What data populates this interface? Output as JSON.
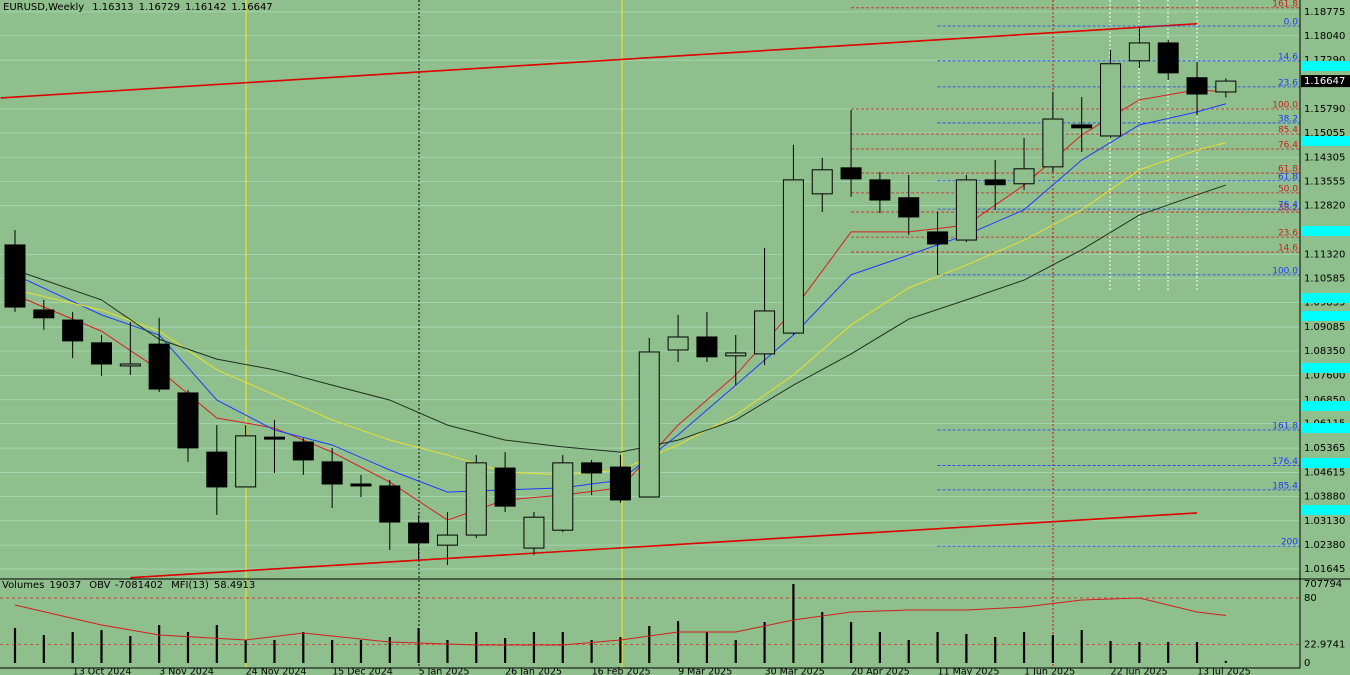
{
  "header": {
    "symbol": "EURUSD,Weekly"
  },
  "chart_data": [
    {
      "type": "candlestick",
      "categories": [
        null,
        null,
        "13 Oct 2024",
        null,
        null,
        "3 Nov 2024",
        null,
        null,
        "24 Nov 2024",
        null,
        null,
        "15 Dec 2024",
        null,
        null,
        "5 Jan 2025",
        null,
        null,
        "26 Jan 2025",
        null,
        null,
        "16 Feb 2025",
        null,
        null,
        "9 Mar 2025",
        null,
        null,
        "30 Mar 2025",
        null,
        null,
        "20 Apr 2025",
        null,
        null,
        "11 May 2025",
        null,
        null,
        "1 Jun 2025",
        null,
        null,
        "22 Jun 2025",
        null,
        null,
        "13 Jul 2025",
        null
      ],
      "open": [
        1.1161,
        1.0961,
        1.093,
        1.086,
        1.0789,
        1.0856,
        1.0706,
        1.0524,
        1.0417,
        1.057,
        1.0555,
        1.0494,
        1.0426,
        1.042,
        1.0306,
        1.0238,
        1.0269,
        1.0475,
        1.0229,
        1.0284,
        1.0491,
        1.0478,
        1.0386,
        1.0838,
        1.0878,
        1.082,
        1.0826,
        1.089,
        1.1318,
        1.1398,
        1.1361,
        1.1306,
        1.1201,
        1.1176,
        1.1361,
        1.1349,
        1.1401,
        1.153,
        1.1496,
        1.1727,
        1.1782,
        1.1675,
        1.16313
      ],
      "high": [
        1.1207,
        1.0992,
        1.0955,
        1.0884,
        1.0924,
        1.0937,
        1.0715,
        1.0607,
        1.0607,
        1.0623,
        1.0567,
        1.0537,
        1.0454,
        1.0438,
        1.0331,
        1.034,
        1.0515,
        1.0524,
        1.034,
        1.0515,
        1.05,
        1.0515,
        1.0875,
        1.0946,
        1.0955,
        1.0884,
        1.1152,
        1.1469,
        1.1429,
        1.1576,
        1.1385,
        1.1376,
        1.1262,
        1.1376,
        1.1422,
        1.149,
        1.1632,
        1.1616,
        1.1761,
        1.1828,
        1.1791,
        1.1724,
        1.16729
      ],
      "low": [
        1.0955,
        1.09,
        1.0813,
        1.0758,
        1.0761,
        1.0709,
        1.0494,
        1.0331,
        1.0423,
        1.046,
        1.0454,
        1.0352,
        1.0386,
        1.0223,
        1.0192,
        1.0177,
        1.026,
        1.034,
        1.0208,
        1.0278,
        1.0392,
        1.0368,
        1.0386,
        1.0801,
        1.0801,
        1.073,
        1.0792,
        1.0884,
        1.1262,
        1.1309,
        1.1259,
        1.1192,
        1.1069,
        1.117,
        1.1269,
        1.133,
        1.1385,
        1.1447,
        1.149,
        1.1705,
        1.1668,
        1.1561,
        1.16142
      ],
      "close": [
        1.097,
        1.0937,
        1.0866,
        1.0795,
        1.0795,
        1.0718,
        1.0537,
        1.0417,
        1.0574,
        1.0564,
        1.05,
        1.0426,
        1.042,
        1.0309,
        1.0245,
        1.0269,
        1.0491,
        1.0358,
        1.0324,
        1.0491,
        1.046,
        1.0377,
        1.0832,
        1.0878,
        1.0817,
        1.0829,
        1.0958,
        1.1361,
        1.1392,
        1.1364,
        1.1299,
        1.1247,
        1.1164,
        1.1361,
        1.1346,
        1.1395,
        1.1548,
        1.1521,
        1.1718,
        1.1782,
        1.169,
        1.1625,
        1.16647
      ],
      "ylim": [
        1.0137,
        1.1914
      ],
      "yticks": [
        1.18775,
        {
          "value": 1.1804,
          "label": "1.18040"
        },
        {
          "value": 1.1729,
          "label": "1.17290"
        },
        {
          "value": 1.1579,
          "label": "1.15790"
        },
        1.15055,
        1.14305,
        1.13555,
        {
          "value": 1.1282,
          "label": "1.12820"
        },
        {
          "value": 1.1132,
          "label": "1.11320"
        },
        1.10585,
        1.09835,
        1.09085,
        {
          "value": 1.0835,
          "label": "1.08350"
        },
        {
          "value": 1.076,
          "label": "1.07600"
        },
        {
          "value": 1.0685,
          "label": "1.06850"
        },
        1.06115,
        1.05365,
        1.04615,
        {
          "value": 1.0388,
          "label": "1.03880"
        },
        {
          "value": 1.0313,
          "label": "1.03130"
        },
        {
          "value": 1.0238,
          "label": "1.02380"
        },
        1.01645
      ],
      "grid": true,
      "overlays": [
        {
          "color": "#d82020",
          "x": [
            0,
            3,
            5,
            7,
            9,
            11,
            13,
            15,
            17,
            19,
            21,
            23,
            25,
            27,
            29,
            31,
            33,
            35,
            37,
            39,
            41,
            42
          ],
          "values": [
            1.1007,
            1.0896,
            1.0777,
            1.0629,
            1.0598,
            1.0524,
            1.0432,
            1.0315,
            1.0377,
            1.0392,
            1.0414,
            1.0607,
            1.0761,
            1.0961,
            1.1201,
            1.1201,
            1.1222,
            1.1345,
            1.1499,
            1.1607,
            1.1638,
            1.1631
          ]
        },
        {
          "color": "#1e3cff",
          "x": [
            0,
            3,
            5,
            7,
            9,
            11,
            13,
            15,
            17,
            19,
            21,
            23,
            25,
            27,
            29,
            31,
            33,
            35,
            37,
            39,
            41,
            42
          ],
          "values": [
            1.1069,
            1.0946,
            1.0884,
            1.0684,
            1.0592,
            1.0546,
            1.0469,
            1.0401,
            1.0408,
            1.0414,
            1.0438,
            1.0577,
            1.073,
            1.0884,
            1.1069,
            1.113,
            1.1192,
            1.1269,
            1.1422,
            1.153,
            1.157,
            1.1595
          ]
        },
        {
          "color": "#e8e030",
          "x": [
            0,
            3,
            5,
            7,
            9,
            11,
            13,
            15,
            17,
            19,
            21,
            23,
            25,
            27,
            29,
            31,
            33,
            35,
            37,
            39,
            41,
            42
          ],
          "values": [
            1.1023,
            1.0961,
            1.0896,
            1.0777,
            1.07,
            1.0623,
            1.0561,
            1.0515,
            1.0463,
            1.0454,
            1.0469,
            1.0546,
            1.0638,
            1.0761,
            1.0915,
            1.1029,
            1.1099,
            1.1176,
            1.1269,
            1.1392,
            1.1453,
            1.1475
          ]
        },
        {
          "color": "#203020",
          "x": [
            0,
            3,
            5,
            7,
            9,
            11,
            13,
            15,
            17,
            19,
            21,
            23,
            25,
            27,
            29,
            31,
            33,
            35,
            37,
            39,
            41,
            42
          ],
          "values": [
            1.1084,
            1.0992,
            1.0871,
            1.081,
            1.0777,
            1.073,
            1.0684,
            1.0607,
            1.0561,
            1.054,
            1.0524,
            1.0561,
            1.0623,
            1.073,
            1.0826,
            1.0933,
            1.0992,
            1.1053,
            1.1146,
            1.1253,
            1.1315,
            1.1345
          ]
        }
      ],
      "trend_lines": [
        {
          "color": "#e00000",
          "x": [
            -0.5,
            41
          ],
          "values": [
            1.1613,
            1.1841
          ]
        },
        {
          "color": "#e00000",
          "x": [
            4,
            41
          ],
          "values": [
            1.0138,
            1.0337
          ]
        }
      ],
      "fib_levels": [
        {
          "text": "161.8",
          "price": 1.189,
          "color": "#d02020",
          "start": 29
        },
        {
          "text": "100.0",
          "price": 1.1579,
          "color": "#d02020",
          "start": 29
        },
        {
          "text": "85.4",
          "price": 1.1502,
          "color": "#d02020",
          "start": 29
        },
        {
          "text": "76.4",
          "price": 1.1456,
          "color": "#d02020",
          "start": 29
        },
        {
          "text": "61.8",
          "price": 1.1382,
          "color": "#d02020",
          "start": 29
        },
        {
          "text": "50.0",
          "price": 1.1321,
          "color": "#d02020",
          "start": 29
        },
        {
          "text": "38.2",
          "price": 1.1262,
          "color": "#d02020",
          "start": 29
        },
        {
          "text": "23.6",
          "price": 1.1185,
          "color": "#d02020",
          "start": 29
        },
        {
          "text": "14.6",
          "price": 1.1139,
          "color": "#d02020",
          "start": 29
        },
        {
          "text": "0.0",
          "price": 1.1834,
          "color": "#1e3cff",
          "start": 32
        },
        {
          "text": "14.6",
          "price": 1.1727,
          "color": "#1e3cff",
          "start": 32
        },
        {
          "text": "23.6",
          "price": 1.1647,
          "color": "#1e3cff",
          "start": 32
        },
        {
          "text": "38.2",
          "price": 1.1536,
          "color": "#1e3cff",
          "start": 32
        },
        {
          "text": "61.8",
          "price": 1.1358,
          "color": "#1e3cff",
          "start": 32
        },
        {
          "text": "76.4",
          "price": 1.1271,
          "color": "#1e3cff",
          "start": 32
        },
        {
          "text": "100.0",
          "price": 1.1069,
          "color": "#1e3cff",
          "start": 32
        },
        {
          "text": "161.8",
          "price": 1.0592,
          "color": "#1e3cff",
          "start": 32
        },
        {
          "text": "176.4",
          "price": 1.0483,
          "color": "#1e3cff",
          "start": 32
        },
        {
          "text": "185.4",
          "price": 1.0408,
          "color": "#1e3cff",
          "start": 32
        },
        {
          "text": "200",
          "price": 1.0235,
          "color": "#1e3cff",
          "start": 32
        }
      ]
    },
    {
      "type": "volume",
      "volume_label": "Volumes",
      "obv_label": "OBV",
      "obv_value": -7081402,
      "mfi_label": "MFI(13)",
      "values": [
        313580,
        250860,
        277740,
        295660,
        241900,
        340460,
        277740,
        340460,
        206070,
        206070,
        277740,
        206070,
        206070,
        232940,
        313580,
        206070,
        277740,
        223990,
        277740,
        277740,
        206070,
        232940,
        331500,
        376290,
        277740,
        206070,
        367340,
        707794,
        456930,
        367340,
        277740,
        206070,
        277740,
        259820,
        232940,
        277740,
        250860,
        295660,
        197110,
        188150,
        188150,
        188150,
        19037
      ],
      "color": "#000000",
      "ylim": [
        0,
        707794
      ],
      "yticks": [
        0,
        707794
      ],
      "mfi": {
        "color": "#d02020",
        "x": [
          0,
          3,
          5,
          8,
          10,
          13,
          16,
          19,
          21,
          23,
          25,
          27,
          29,
          31,
          33,
          35,
          37,
          39,
          41,
          42
        ],
        "values": [
          71.4,
          46.8,
          34.5,
          28.3,
          36.9,
          25.8,
          22.2,
          22.2,
          28.3,
          38.2,
          38.2,
          52.9,
          62.8,
          65.2,
          65.2,
          68.9,
          77.5,
          80.0,
          62.8,
          58.4913
        ]
      },
      "y2lim": [
        0,
        100
      ],
      "y2ticks": [
        80,
        22.9741
      ]
    }
  ]
}
